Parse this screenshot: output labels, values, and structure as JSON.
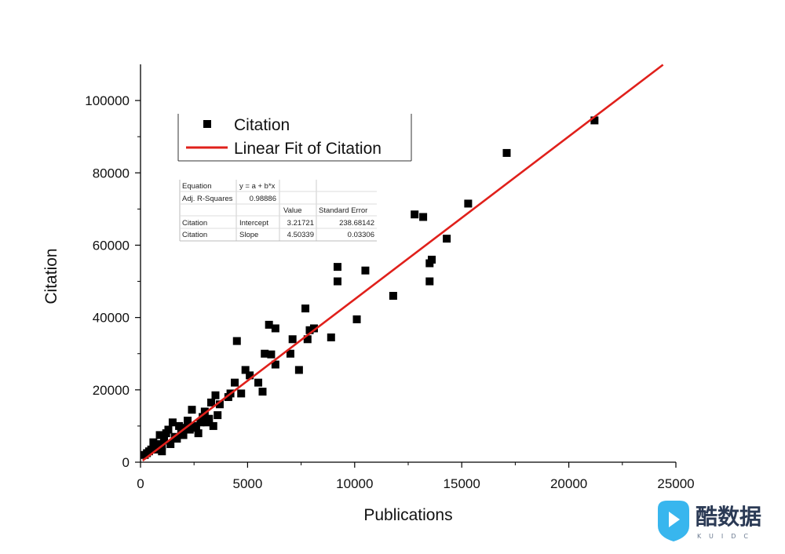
{
  "chart_data": {
    "type": "scatter",
    "xlabel": "Publications",
    "ylabel": "Citation",
    "xlim": [
      0,
      25000
    ],
    "ylim": [
      0,
      110000
    ],
    "x_ticks": [
      0,
      5000,
      10000,
      15000,
      20000,
      25000
    ],
    "x_tick_labels": [
      "0",
      "5000",
      "10000",
      "15000",
      "20000",
      "25000"
    ],
    "y_ticks": [
      0,
      20000,
      40000,
      60000,
      80000,
      100000
    ],
    "y_tick_labels": [
      "0",
      "20000",
      "40000",
      "60000",
      "80000",
      "100000"
    ],
    "grid": false,
    "legend": {
      "placement": "top-left",
      "entries": [
        {
          "label": "Citation",
          "marker": "square",
          "color": "#000000"
        },
        {
          "label": "Linear Fit of Citation",
          "marker": "line",
          "color": "#e0201b"
        }
      ]
    },
    "series": [
      {
        "name": "Citation",
        "marker": "square",
        "color": "#000000",
        "points": [
          [
            21200,
            94500
          ],
          [
            17100,
            85500
          ],
          [
            15300,
            71500
          ],
          [
            12800,
            68500
          ],
          [
            13200,
            67800
          ],
          [
            14300,
            61800
          ],
          [
            13600,
            56000
          ],
          [
            13500,
            55000
          ],
          [
            13500,
            50000
          ],
          [
            11800,
            46000
          ],
          [
            10500,
            53000
          ],
          [
            9200,
            54000
          ],
          [
            9200,
            50000
          ],
          [
            10100,
            39500
          ],
          [
            8900,
            34500
          ],
          [
            7700,
            42500
          ],
          [
            7800,
            34000
          ],
          [
            7900,
            36500
          ],
          [
            8100,
            37000
          ],
          [
            7100,
            34000
          ],
          [
            7000,
            30000
          ],
          [
            7400,
            25500
          ],
          [
            6000,
            38000
          ],
          [
            6300,
            37000
          ],
          [
            5800,
            30000
          ],
          [
            6100,
            29800
          ],
          [
            6300,
            27000
          ],
          [
            5500,
            22000
          ],
          [
            5700,
            19500
          ],
          [
            4500,
            33500
          ],
          [
            4900,
            25500
          ],
          [
            5100,
            24000
          ],
          [
            4400,
            22000
          ],
          [
            4700,
            19000
          ],
          [
            4200,
            19000
          ],
          [
            4100,
            18000
          ],
          [
            3500,
            18500
          ],
          [
            3700,
            16000
          ],
          [
            3300,
            16500
          ],
          [
            3000,
            14000
          ],
          [
            3600,
            13000
          ],
          [
            3200,
            12000
          ],
          [
            3400,
            10000
          ],
          [
            2800,
            11000
          ],
          [
            2400,
            14500
          ],
          [
            2600,
            10000
          ],
          [
            2300,
            9000
          ],
          [
            2700,
            8000
          ],
          [
            2100,
            9500
          ],
          [
            1900,
            8500
          ],
          [
            1800,
            10000
          ],
          [
            1500,
            11000
          ],
          [
            1300,
            9000
          ],
          [
            1600,
            7000
          ],
          [
            1200,
            8000
          ],
          [
            1100,
            6000
          ],
          [
            900,
            7500
          ],
          [
            800,
            5000
          ],
          [
            1000,
            4500
          ],
          [
            700,
            4000
          ],
          [
            600,
            5500
          ],
          [
            500,
            3500
          ],
          [
            400,
            3000
          ],
          [
            300,
            2500
          ],
          [
            200,
            2000
          ],
          [
            2000,
            7500
          ],
          [
            2200,
            11500
          ],
          [
            1700,
            6500
          ],
          [
            1400,
            5000
          ],
          [
            2900,
            12500
          ],
          [
            3100,
            11000
          ],
          [
            2500,
            9500
          ],
          [
            1000,
            3000
          ],
          [
            800,
            3500
          ]
        ]
      },
      {
        "name": "Linear Fit of Citation",
        "type": "line",
        "color": "#e0201b",
        "x": [
          100,
          24400
        ],
        "y": [
          453.5,
          109885.9
        ]
      }
    ],
    "fit_table": {
      "equation_label": "Equation",
      "equation": "y = a + b*x",
      "adj_r_label": "Adj. R-Squares",
      "adj_r_value": "0.98886",
      "col_value": "Value",
      "col_error": "Standard Error",
      "rows": [
        {
          "series": "Citation",
          "param": "Intercept",
          "value": "3.21721",
          "error": "238.68142"
        },
        {
          "series": "Citation",
          "param": "Slope",
          "value": "4.50339",
          "error": "0.03306"
        }
      ]
    }
  },
  "watermark": {
    "text": "酷数据",
    "subtext": "KUIDC",
    "icon": "play-shield-icon"
  }
}
